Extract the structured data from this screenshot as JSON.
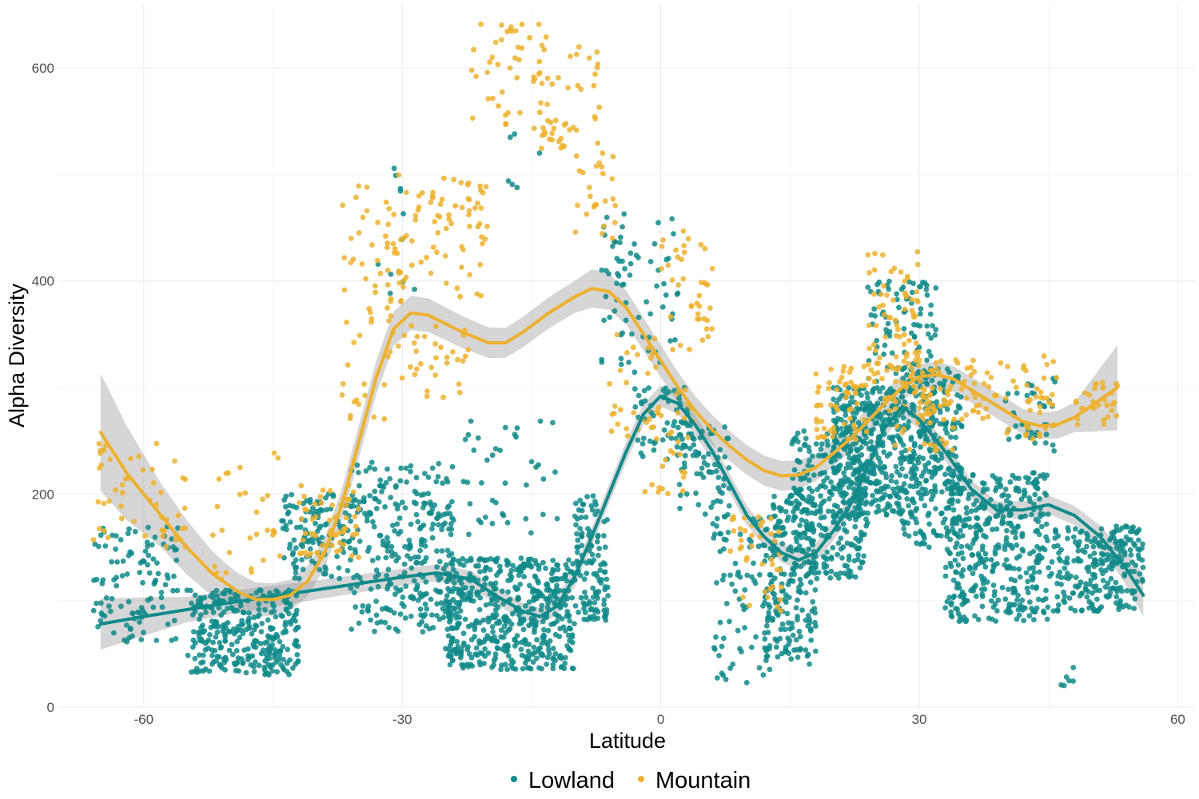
{
  "chart_data": {
    "type": "scatter",
    "xlabel": "Latitude",
    "ylabel": "Alpha Diversity",
    "xlim": [
      -70,
      62
    ],
    "ylim": [
      0,
      660
    ],
    "x_ticks": [
      -60,
      -30,
      0,
      30,
      60
    ],
    "y_ticks": [
      0,
      200,
      400,
      600
    ],
    "grid": true,
    "legend_position": "bottom",
    "series": [
      {
        "name": "Lowland",
        "color": "#108a8a",
        "smooth": [
          [
            -65,
            78
          ],
          [
            -60,
            85
          ],
          [
            -50,
            98
          ],
          [
            -40,
            110
          ],
          [
            -30,
            122
          ],
          [
            -26,
            126
          ],
          [
            -22,
            120
          ],
          [
            -19,
            104
          ],
          [
            -16,
            90
          ],
          [
            -14,
            85
          ],
          [
            -12,
            95
          ],
          [
            -10,
            122
          ],
          [
            -8,
            160
          ],
          [
            -6,
            200
          ],
          [
            -4,
            240
          ],
          [
            -2,
            275
          ],
          [
            0,
            292
          ],
          [
            2,
            285
          ],
          [
            4,
            265
          ],
          [
            6,
            240
          ],
          [
            8,
            210
          ],
          [
            10,
            180
          ],
          [
            12,
            160
          ],
          [
            14,
            145
          ],
          [
            16,
            138
          ],
          [
            18,
            145
          ],
          [
            20,
            165
          ],
          [
            22,
            190
          ],
          [
            24,
            225
          ],
          [
            26,
            262
          ],
          [
            28,
            282
          ],
          [
            30,
            270
          ],
          [
            33,
            240
          ],
          [
            36,
            205
          ],
          [
            39,
            185
          ],
          [
            42,
            185
          ],
          [
            45,
            190
          ],
          [
            48,
            180
          ],
          [
            51,
            160
          ],
          [
            54,
            130
          ],
          [
            56,
            105
          ]
        ],
        "band": [
          [
            -65,
            78,
            24
          ],
          [
            -55,
            92,
            12
          ],
          [
            -40,
            110,
            9
          ],
          [
            -30,
            122,
            8
          ],
          [
            -20,
            110,
            8
          ],
          [
            -14,
            86,
            8
          ],
          [
            -6,
            200,
            9
          ],
          [
            0,
            292,
            10
          ],
          [
            8,
            210,
            9
          ],
          [
            16,
            138,
            9
          ],
          [
            28,
            282,
            9
          ],
          [
            40,
            185,
            8
          ],
          [
            48,
            180,
            9
          ],
          [
            52,
            150,
            11
          ],
          [
            56,
            105,
            20
          ]
        ],
        "clusters": [
          [
            -66,
            -56,
            60,
            170,
            110
          ],
          [
            -55,
            -42,
            30,
            110,
            320
          ],
          [
            -44,
            -36,
            120,
            200,
            120
          ],
          [
            -36,
            -24,
            70,
            230,
            300
          ],
          [
            -33,
            -28,
            380,
            540,
            12
          ],
          [
            -25,
            -10,
            35,
            140,
            520
          ],
          [
            -24,
            -12,
            160,
            280,
            40
          ],
          [
            -18,
            -14,
            480,
            560,
            6
          ],
          [
            -10,
            -6,
            80,
            200,
            120
          ],
          [
            -7,
            -4,
            320,
            470,
            30
          ],
          [
            -5,
            2,
            310,
            460,
            40
          ],
          [
            -3,
            4,
            230,
            300,
            60
          ],
          [
            2,
            8,
            180,
            270,
            70
          ],
          [
            6,
            14,
            20,
            180,
            90
          ],
          [
            12,
            18,
            40,
            200,
            200
          ],
          [
            15,
            24,
            120,
            260,
            300
          ],
          [
            20,
            28,
            180,
            300,
            300
          ],
          [
            24,
            32,
            200,
            400,
            200
          ],
          [
            28,
            35,
            150,
            320,
            250
          ],
          [
            33,
            45,
            80,
            220,
            400
          ],
          [
            40,
            46,
            240,
            310,
            40
          ],
          [
            45,
            56,
            90,
            170,
            200
          ],
          [
            46,
            48,
            20,
            50,
            6
          ],
          [
            50,
            56,
            120,
            170,
            40
          ]
        ]
      },
      {
        "name": "Mountain",
        "color": "#edb12f",
        "smooth": [
          [
            -65,
            258
          ],
          [
            -62,
            220
          ],
          [
            -58,
            180
          ],
          [
            -55,
            150
          ],
          [
            -52,
            125
          ],
          [
            -49,
            108
          ],
          [
            -47,
            101
          ],
          [
            -45,
            101
          ],
          [
            -43,
            105
          ],
          [
            -41,
            118
          ],
          [
            -39,
            145
          ],
          [
            -37,
            190
          ],
          [
            -35,
            250
          ],
          [
            -33,
            310
          ],
          [
            -31,
            355
          ],
          [
            -29,
            370
          ],
          [
            -27,
            368
          ],
          [
            -25,
            360
          ],
          [
            -23,
            352
          ],
          [
            -20,
            342
          ],
          [
            -18,
            342
          ],
          [
            -16,
            352
          ],
          [
            -13,
            370
          ],
          [
            -10,
            385
          ],
          [
            -8,
            393
          ],
          [
            -6,
            390
          ],
          [
            -4,
            375
          ],
          [
            -2,
            350
          ],
          [
            0,
            325
          ],
          [
            2,
            300
          ],
          [
            4,
            278
          ],
          [
            6,
            260
          ],
          [
            8,
            245
          ],
          [
            10,
            232
          ],
          [
            12,
            222
          ],
          [
            14,
            217
          ],
          [
            16,
            218
          ],
          [
            18,
            225
          ],
          [
            20,
            238
          ],
          [
            22,
            252
          ],
          [
            24,
            268
          ],
          [
            26,
            285
          ],
          [
            28,
            300
          ],
          [
            30,
            310
          ],
          [
            32,
            312
          ],
          [
            34,
            308
          ],
          [
            36,
            298
          ],
          [
            38,
            288
          ],
          [
            40,
            278
          ],
          [
            42,
            268
          ],
          [
            44,
            264
          ],
          [
            46,
            265
          ],
          [
            48,
            272
          ],
          [
            50,
            283
          ],
          [
            53,
            300
          ]
        ],
        "band": [
          [
            -65,
            258,
            55
          ],
          [
            -58,
            180,
            30
          ],
          [
            -50,
            115,
            18
          ],
          [
            -45,
            101,
            15
          ],
          [
            -40,
            130,
            14
          ],
          [
            -32,
            335,
            16
          ],
          [
            -28,
            370,
            16
          ],
          [
            -18,
            342,
            14
          ],
          [
            -10,
            385,
            15
          ],
          [
            -8,
            393,
            18
          ],
          [
            -4,
            375,
            16
          ],
          [
            4,
            278,
            14
          ],
          [
            14,
            217,
            14
          ],
          [
            22,
            252,
            12
          ],
          [
            30,
            310,
            12
          ],
          [
            38,
            288,
            12
          ],
          [
            44,
            264,
            12
          ],
          [
            48,
            272,
            14
          ],
          [
            53,
            300,
            40
          ]
        ],
        "clusters": [
          [
            -66,
            -55,
            150,
            250,
            50
          ],
          [
            -52,
            -44,
            120,
            240,
            30
          ],
          [
            -42,
            -35,
            140,
            210,
            60
          ],
          [
            -37,
            -30,
            270,
            500,
            60
          ],
          [
            -32,
            -20,
            380,
            500,
            80
          ],
          [
            -30,
            -22,
            290,
            360,
            30
          ],
          [
            -22,
            -13,
            540,
            645,
            50
          ],
          [
            -14,
            -7,
            520,
            620,
            40
          ],
          [
            -10,
            -5,
            440,
            520,
            25
          ],
          [
            -6,
            0,
            250,
            350,
            30
          ],
          [
            0,
            6,
            330,
            450,
            40
          ],
          [
            -2,
            4,
            200,
            300,
            30
          ],
          [
            8,
            14,
            90,
            180,
            40
          ],
          [
            18,
            24,
            250,
            320,
            60
          ],
          [
            24,
            30,
            300,
            430,
            80
          ],
          [
            26,
            34,
            240,
            320,
            50
          ],
          [
            30,
            40,
            270,
            330,
            60
          ],
          [
            40,
            46,
            250,
            330,
            40
          ],
          [
            48,
            53,
            265,
            305,
            30
          ]
        ]
      }
    ]
  }
}
